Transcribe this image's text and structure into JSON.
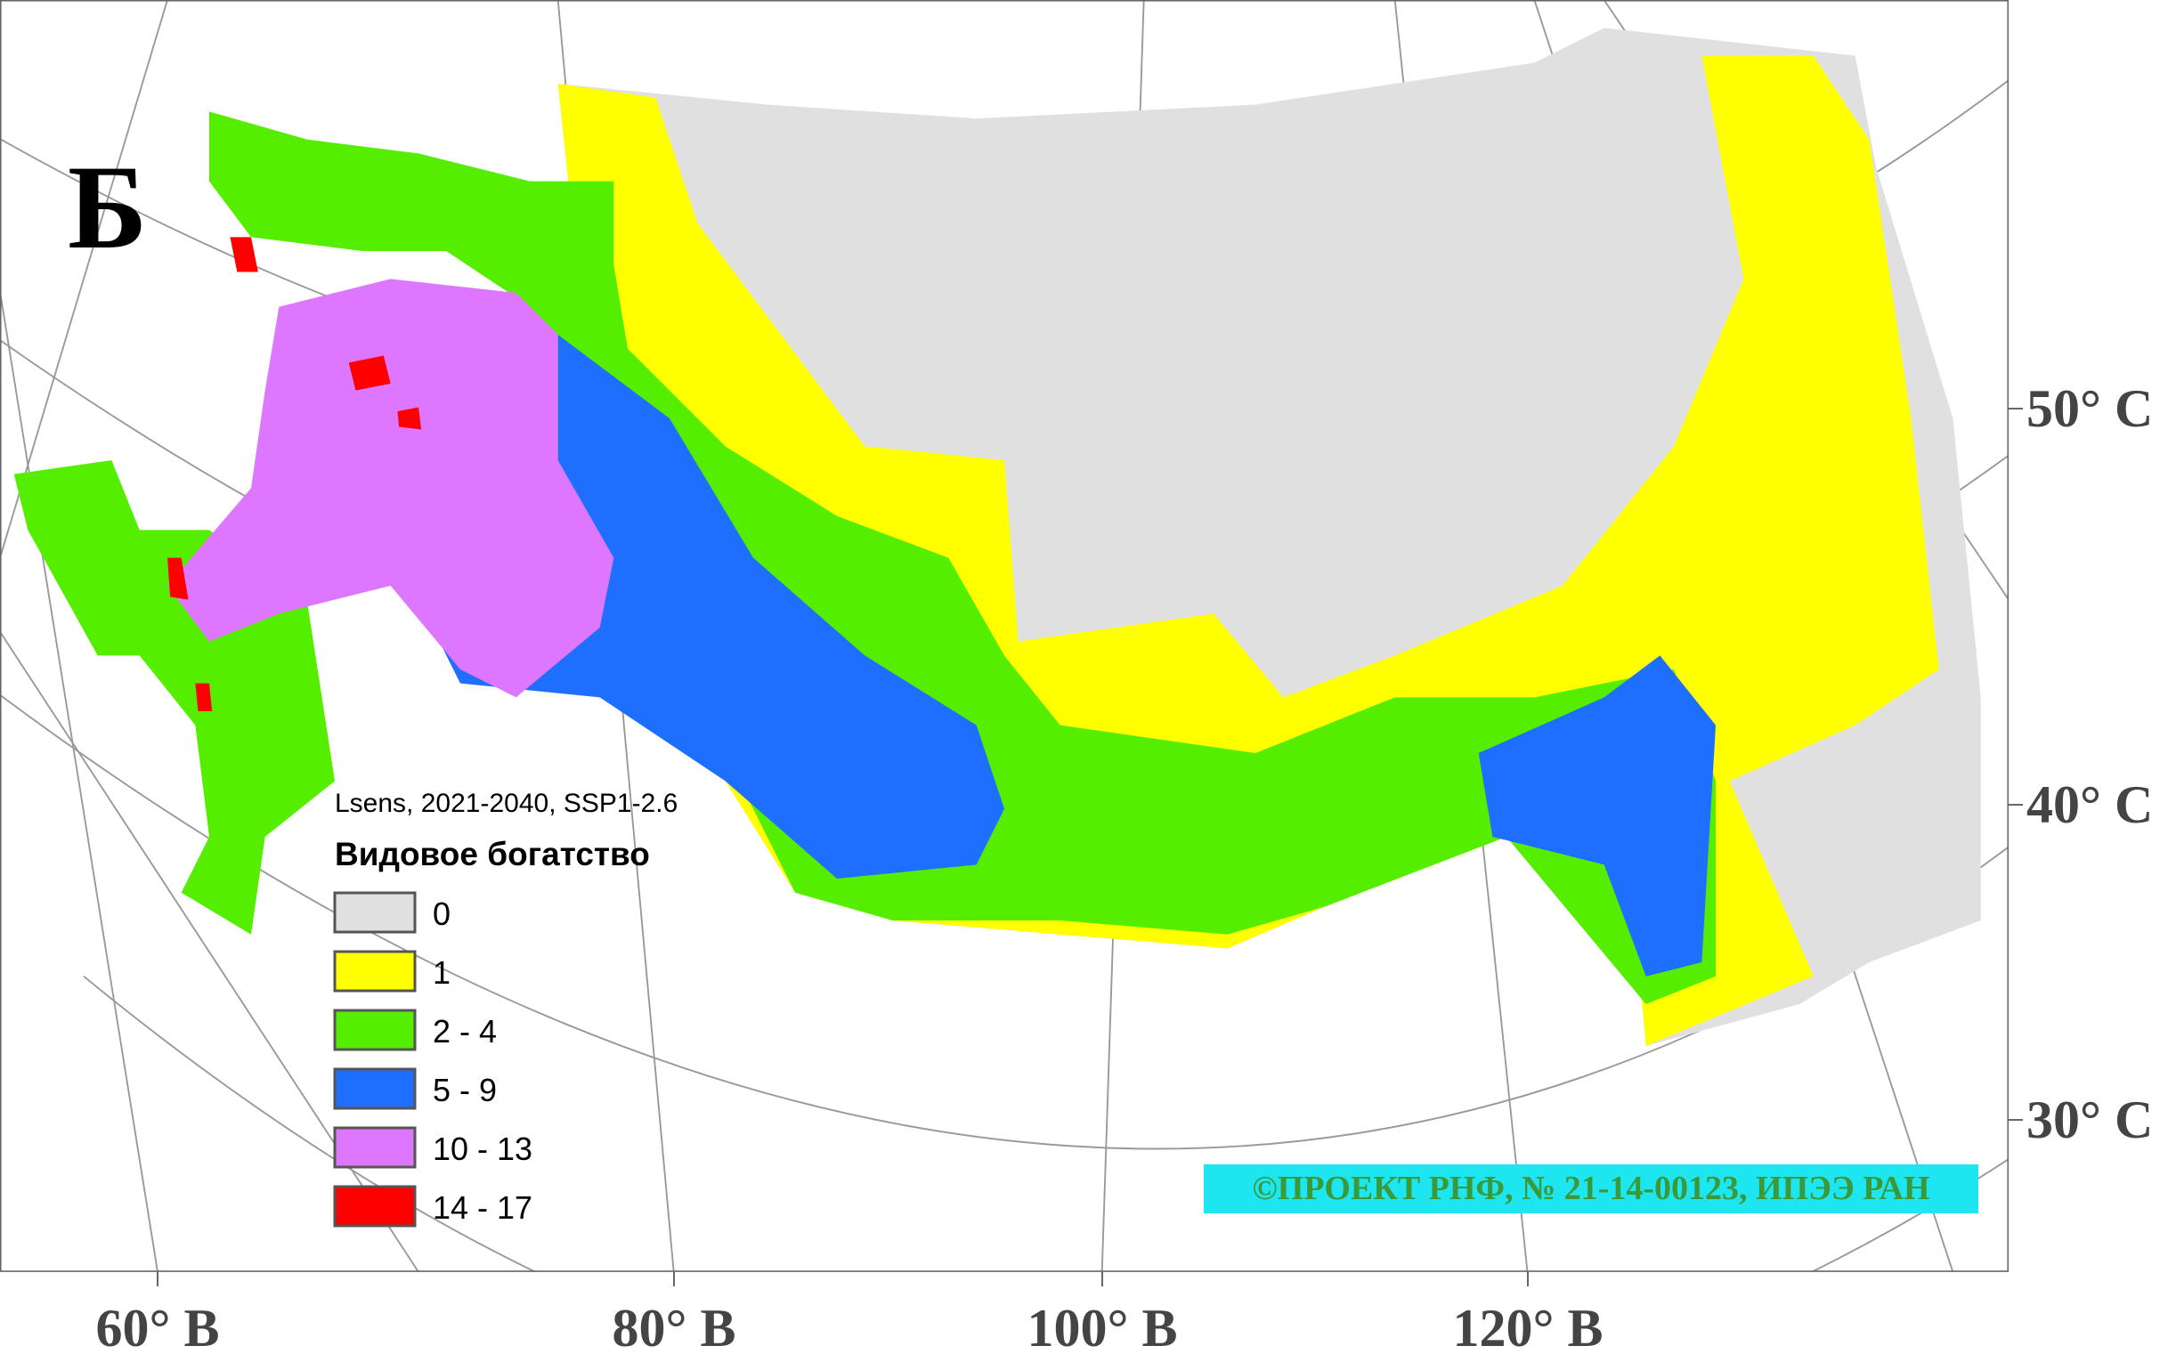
{
  "map": {
    "panel_letter": "Б",
    "legend": {
      "subtitle": "Lsens, 2021-2040, SSP1-2.6",
      "title": "Видовое богатство",
      "items": [
        {
          "label": "0",
          "color": "#e0e0e0"
        },
        {
          "label": "1",
          "color": "#ffff00"
        },
        {
          "label": "2 - 4",
          "color": "#55ee00"
        },
        {
          "label": "5 - 9",
          "color": "#1f6fff"
        },
        {
          "label": "10 - 13",
          "color": "#dd77ff"
        },
        {
          "label": "14 - 17",
          "color": "#ff0000"
        }
      ]
    },
    "longitude_labels": [
      "60° В",
      "80° В",
      "100° В",
      "120° В"
    ],
    "latitude_labels": [
      "50° С",
      "40° С",
      "30° С"
    ],
    "credit": "©ПРОЕКТ РНФ, № 21-14-00123, ИПЭЭ РАН"
  }
}
